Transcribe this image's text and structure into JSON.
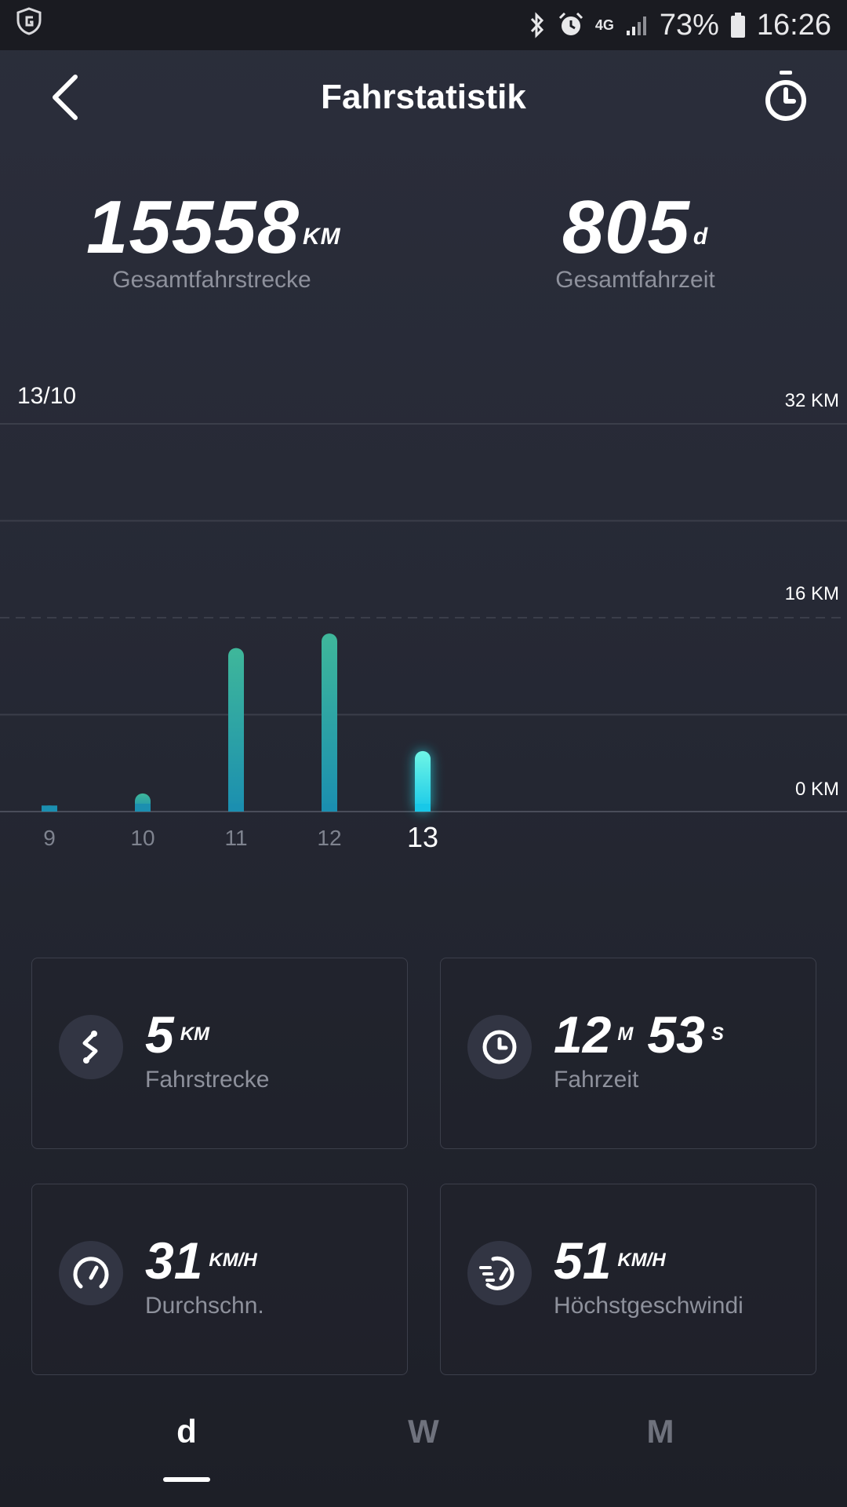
{
  "status": {
    "battery_percent": "73%",
    "time": "16:26",
    "network": "4G"
  },
  "header": {
    "title": "Fahrstatistik"
  },
  "totals": {
    "distance": {
      "value": "15558",
      "unit": "KM",
      "label": "Gesamtfahrstrecke"
    },
    "time": {
      "value": "805",
      "unit": "d",
      "label": "Gesamtfahrzeit"
    }
  },
  "chart_data": {
    "type": "bar",
    "selected_label": "13/10",
    "categories": [
      "9",
      "10",
      "11",
      "12",
      "13"
    ],
    "values": [
      0.5,
      1.5,
      13.5,
      14.7,
      5
    ],
    "selected_category": "13",
    "yticks": [
      "32 KM",
      "16 KM",
      "0 KM"
    ],
    "ylim": [
      0,
      32
    ],
    "grid": true,
    "colors": {
      "bar_top": "#3fb79a",
      "bar_bottom": "#1b8fb0",
      "selected": "#25e3f0"
    }
  },
  "stats": {
    "distance": {
      "value": "5",
      "unit": "KM",
      "label": "Fahrstrecke"
    },
    "ride_time": {
      "minutes": "12",
      "minutes_unit": "M",
      "seconds": "53",
      "seconds_unit": "S",
      "label": "Fahrzeit"
    },
    "avg_speed": {
      "value": "31",
      "unit": "KM/H",
      "label": "Durchschn."
    },
    "max_speed": {
      "value": "51",
      "unit": "KM/H",
      "label": "Höchstgeschwindi"
    }
  },
  "tabs": [
    {
      "label": "d"
    },
    {
      "label": "W"
    },
    {
      "label": "M"
    }
  ]
}
